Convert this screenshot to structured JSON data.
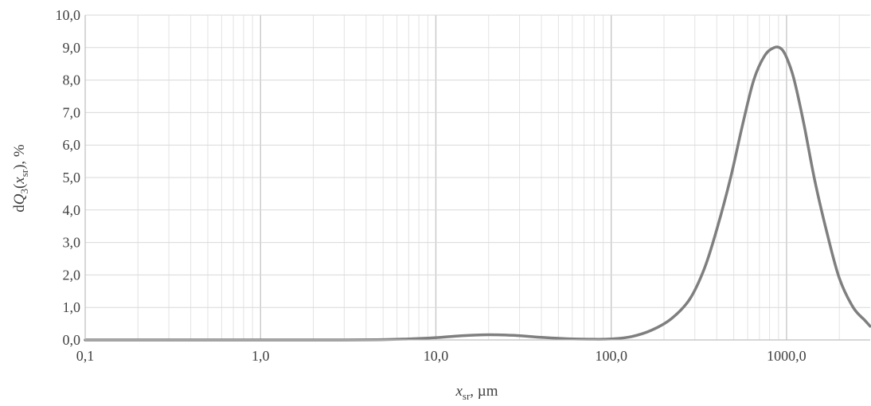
{
  "chart_data": {
    "type": "line",
    "x_scale": "log",
    "xlim": [
      0.1,
      3000
    ],
    "ylim": [
      0,
      10
    ],
    "xlabel": {
      "main": "x",
      "sub": "sr",
      "unit": ", µm"
    },
    "ylabel": {
      "prefix": "d",
      "Q": "Q",
      "Qsub": "3",
      "open": "(",
      "x": "x",
      "xsub": "sr",
      "close": "), %"
    },
    "x_ticks": [
      {
        "value": 0.1,
        "label": "0,1"
      },
      {
        "value": 1,
        "label": "1,0"
      },
      {
        "value": 10,
        "label": "10,0"
      },
      {
        "value": 100,
        "label": "100,0"
      },
      {
        "value": 1000,
        "label": "1000,0"
      }
    ],
    "y_ticks": [
      {
        "value": 0,
        "label": "0,0"
      },
      {
        "value": 1,
        "label": "1,0"
      },
      {
        "value": 2,
        "label": "2,0"
      },
      {
        "value": 3,
        "label": "3,0"
      },
      {
        "value": 4,
        "label": "4,0"
      },
      {
        "value": 5,
        "label": "5,0"
      },
      {
        "value": 6,
        "label": "6,0"
      },
      {
        "value": 7,
        "label": "7,0"
      },
      {
        "value": 8,
        "label": "8,0"
      },
      {
        "value": 9,
        "label": "9,0"
      },
      {
        "value": 10,
        "label": "10,0"
      }
    ],
    "grid": {
      "horizontal": true,
      "vertical_major": true,
      "vertical_minor": true
    },
    "series": [
      {
        "color": "#7f7f7f",
        "x": [
          0.1,
          0.5,
          1,
          3,
          5,
          7,
          10,
          14,
          20,
          28,
          40,
          60,
          80,
          100,
          130,
          170,
          220,
          280,
          340,
          400,
          480,
          560,
          650,
          750,
          850,
          930,
          1000,
          1100,
          1250,
          1450,
          1700,
          2000,
          2400,
          2800,
          3000
        ],
        "y": [
          0,
          0,
          0,
          0,
          0.01,
          0.03,
          0.07,
          0.13,
          0.16,
          0.14,
          0.08,
          0.03,
          0.02,
          0.03,
          0.1,
          0.3,
          0.65,
          1.25,
          2.2,
          3.4,
          5.0,
          6.6,
          8.0,
          8.75,
          9.0,
          8.97,
          8.7,
          8.05,
          6.7,
          4.9,
          3.3,
          1.9,
          1.0,
          0.6,
          0.42
        ]
      }
    ]
  }
}
